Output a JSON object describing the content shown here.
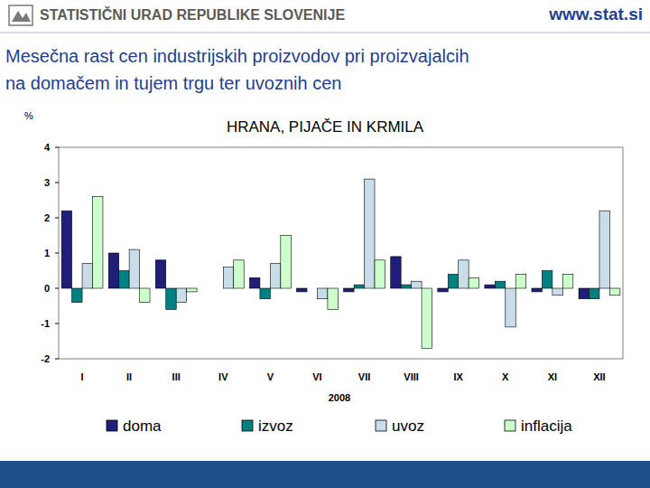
{
  "header": {
    "organization": "STATISTIČNI URAD REPUBLIKE SLOVENIJE",
    "url": "www.stat.si",
    "title": [
      "Mesečna rast cen industrijskih proizvodov pri proizvajalcih",
      "na domačem in tujem trgu ter uvoznih cen"
    ]
  },
  "chart_data": {
    "type": "bar",
    "title": "HRANA, PIJAČE IN KRMILA",
    "y_label": "%",
    "x_label": "2008",
    "categories": [
      "I",
      "II",
      "III",
      "IV",
      "V",
      "VI",
      "VII",
      "VIII",
      "IX",
      "X",
      "XI",
      "XII"
    ],
    "series": [
      {
        "name": "doma",
        "color": "#1f1f7a",
        "values": [
          2.2,
          1.0,
          0.8,
          0.0,
          0.3,
          -0.1,
          -0.1,
          0.9,
          -0.1,
          0.1,
          -0.1,
          -0.3
        ]
      },
      {
        "name": "izvoz",
        "color": "#008080",
        "values": [
          -0.4,
          0.5,
          -0.6,
          0.0,
          -0.3,
          0.0,
          0.1,
          0.1,
          0.4,
          0.2,
          0.5,
          -0.3
        ]
      },
      {
        "name": "uvoz",
        "color": "#c9dde9",
        "values": [
          0.7,
          1.1,
          -0.4,
          0.6,
          0.7,
          -0.3,
          3.1,
          0.2,
          0.8,
          -1.1,
          -0.2,
          2.2
        ]
      },
      {
        "name": "inflacija",
        "color": "#ccffcc",
        "values": [
          2.6,
          -0.4,
          -0.1,
          0.8,
          1.5,
          -0.6,
          0.8,
          -1.7,
          0.3,
          0.4,
          0.4,
          -0.2
        ]
      }
    ],
    "ylim": [
      -2,
      4
    ],
    "yticks": [
      -2,
      -1,
      0,
      1,
      2,
      3,
      4
    ],
    "grid": false,
    "legend": "bottom"
  }
}
